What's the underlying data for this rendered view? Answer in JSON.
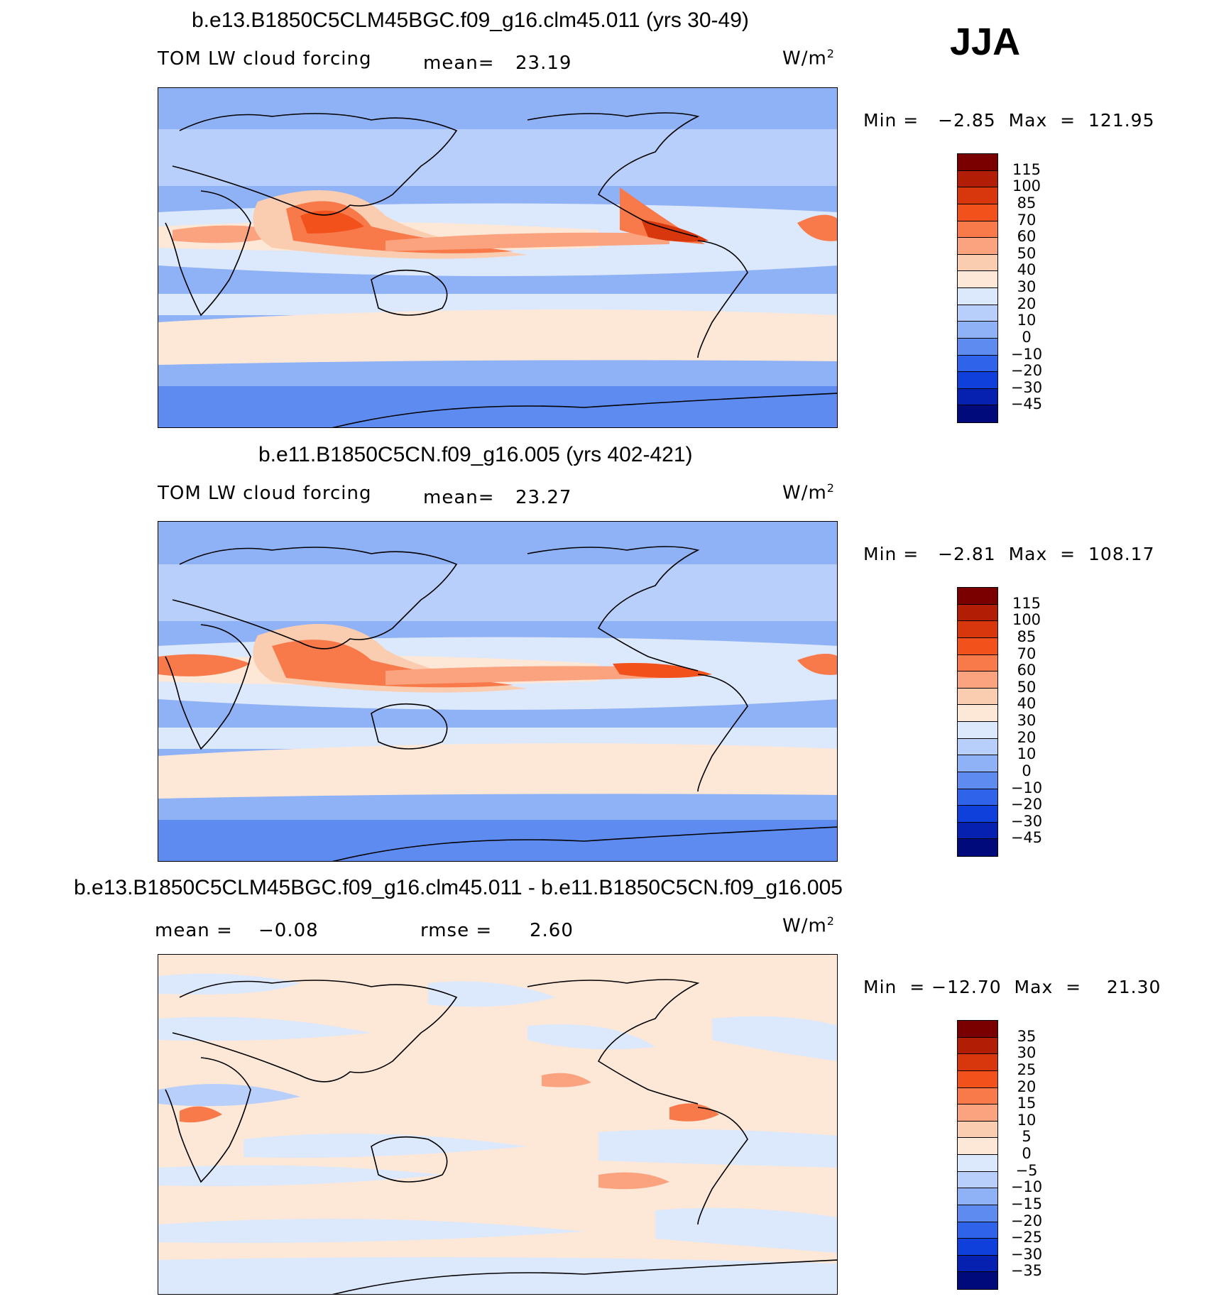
{
  "season": "JJA",
  "units": "W/m",
  "units_exp": "2",
  "panels": [
    {
      "title": "b.e13.B1850C5CLM45BGC.f09_g16.clm45.011 (yrs 30-49)",
      "variable": "TOM LW cloud forcing",
      "mean_label": "mean=",
      "mean_value": "23.19",
      "minmax": "Min =   −2.85  Max  =  121.95",
      "colorbar": {
        "levels": [
          "115",
          "100",
          "85",
          "70",
          "60",
          "50",
          "40",
          "30",
          "20",
          "10",
          "0",
          "−10",
          "−20",
          "−30",
          "−45"
        ],
        "colors": [
          "#7a0000",
          "#b21e05",
          "#d8360c",
          "#f2511c",
          "#f8794a",
          "#fba27e",
          "#fbcdb0",
          "#fde8d8",
          "#dce8fb",
          "#b7cffa",
          "#8fb1f6",
          "#5e8bf0",
          "#2f64ea",
          "#1040db",
          "#0620b0",
          "#000a7a"
        ]
      }
    },
    {
      "title": "b.e11.B1850C5CN.f09_g16.005 (yrs 402-421)",
      "variable": "TOM LW cloud forcing",
      "mean_label": "mean=",
      "mean_value": "23.27",
      "minmax": "Min =   −2.81  Max  =  108.17",
      "colorbar": {
        "levels": [
          "115",
          "100",
          "85",
          "70",
          "60",
          "50",
          "40",
          "30",
          "20",
          "10",
          "0",
          "−10",
          "−20",
          "−30",
          "−45"
        ],
        "colors": [
          "#7a0000",
          "#b21e05",
          "#d8360c",
          "#f2511c",
          "#f8794a",
          "#fba27e",
          "#fbcdb0",
          "#fde8d8",
          "#dce8fb",
          "#b7cffa",
          "#8fb1f6",
          "#5e8bf0",
          "#2f64ea",
          "#1040db",
          "#0620b0",
          "#000a7a"
        ]
      }
    },
    {
      "title": "b.e13.B1850C5CLM45BGC.f09_g16.clm45.011 - b.e11.B1850C5CN.f09_g16.005",
      "mean_label": "mean  =",
      "mean_value": "−0.08",
      "rmse_label": "rmse  =",
      "rmse_value": "2.60",
      "minmax": "Min  = −12.70  Max  =    21.30",
      "colorbar": {
        "levels": [
          "35",
          "30",
          "25",
          "20",
          "15",
          "10",
          "5",
          "0",
          "−5",
          "−10",
          "−15",
          "−20",
          "−25",
          "−30",
          "−35"
        ],
        "colors": [
          "#7a0000",
          "#b21e05",
          "#d8360c",
          "#f2511c",
          "#f8794a",
          "#fba27e",
          "#fbcdb0",
          "#fde8d8",
          "#dce8fb",
          "#b7cffa",
          "#8fb1f6",
          "#5e8bf0",
          "#2f64ea",
          "#1040db",
          "#0620b0",
          "#000a7a"
        ]
      }
    }
  ],
  "chart_data": [
    {
      "type": "heatmap",
      "title": "b.e13.B1850C5CLM45BGC.f09_g16.clm45.011 (yrs 30-49)",
      "variable": "TOM LW cloud forcing",
      "units": "W/m2",
      "mean": 23.19,
      "min": -2.85,
      "max": 121.95,
      "contour_levels": [
        -45,
        -30,
        -20,
        -10,
        0,
        10,
        20,
        30,
        40,
        50,
        60,
        70,
        85,
        100,
        115
      ]
    },
    {
      "type": "heatmap",
      "title": "b.e11.B1850C5CN.f09_g16.005 (yrs 402-421)",
      "variable": "TOM LW cloud forcing",
      "units": "W/m2",
      "mean": 23.27,
      "min": -2.81,
      "max": 108.17,
      "contour_levels": [
        -45,
        -30,
        -20,
        -10,
        0,
        10,
        20,
        30,
        40,
        50,
        60,
        70,
        85,
        100,
        115
      ]
    },
    {
      "type": "heatmap",
      "title": "b.e13.B1850C5CLM45BGC.f09_g16.clm45.011 - b.e11.B1850C5CN.f09_g16.005",
      "units": "W/m2",
      "mean": -0.08,
      "rmse": 2.6,
      "min": -12.7,
      "max": 21.3,
      "contour_levels": [
        -35,
        -30,
        -25,
        -20,
        -15,
        -10,
        -5,
        0,
        5,
        10,
        15,
        20,
        25,
        30,
        35
      ]
    }
  ]
}
